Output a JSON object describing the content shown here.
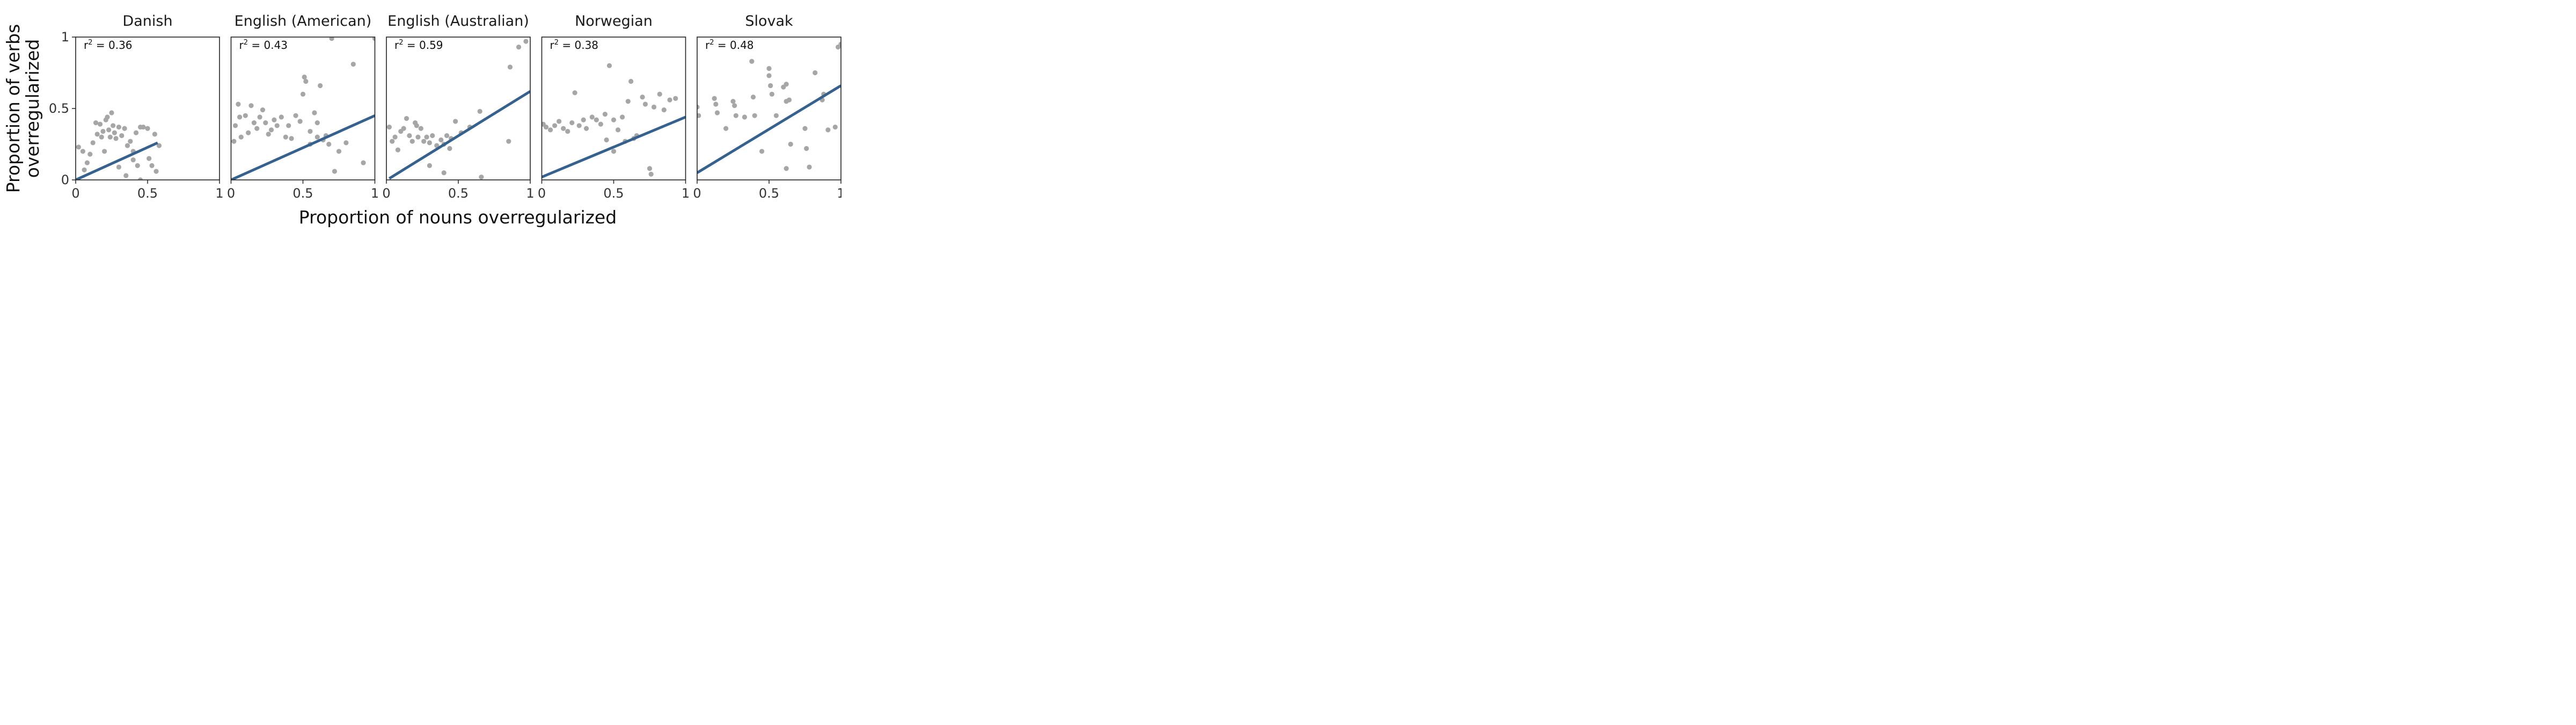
{
  "figure": {
    "y_axis_label_line1": "Proportion of verbs",
    "y_axis_label_line2": "overregularized",
    "x_axis_label": "Proportion of nouns overregularized"
  },
  "colors": {
    "points": "#a6a6a6",
    "fit_line": "#35618f",
    "frame": "#222222"
  },
  "chart_data": [
    {
      "type": "scatter",
      "title": "Danish",
      "r2_prefix": "r",
      "r2_exp": "2",
      "r2_value": " = 0.36",
      "xlim": [
        0,
        1
      ],
      "ylim": [
        0,
        1
      ],
      "x_ticks": [
        "0",
        "0.5",
        "1"
      ],
      "y_ticks": [
        "0",
        "0.5",
        "1"
      ],
      "fit_line": {
        "x": [
          0,
          0.57
        ],
        "y": [
          0.0,
          0.26
        ]
      },
      "points": [
        [
          0.02,
          0.23
        ],
        [
          0.05,
          0.2
        ],
        [
          0.1,
          0.18
        ],
        [
          0.12,
          0.26
        ],
        [
          0.14,
          0.4
        ],
        [
          0.15,
          0.32
        ],
        [
          0.17,
          0.39
        ],
        [
          0.18,
          0.3
        ],
        [
          0.19,
          0.34
        ],
        [
          0.2,
          0.2
        ],
        [
          0.21,
          0.42
        ],
        [
          0.22,
          0.44
        ],
        [
          0.23,
          0.35
        ],
        [
          0.24,
          0.3
        ],
        [
          0.25,
          0.47
        ],
        [
          0.26,
          0.38
        ],
        [
          0.27,
          0.33
        ],
        [
          0.28,
          0.29
        ],
        [
          0.3,
          0.37
        ],
        [
          0.32,
          0.31
        ],
        [
          0.34,
          0.36
        ],
        [
          0.36,
          0.24
        ],
        [
          0.38,
          0.27
        ],
        [
          0.4,
          0.2
        ],
        [
          0.42,
          0.33
        ],
        [
          0.43,
          0.1
        ],
        [
          0.45,
          0.37
        ],
        [
          0.47,
          0.37
        ],
        [
          0.5,
          0.36
        ],
        [
          0.51,
          0.15
        ],
        [
          0.53,
          0.1
        ],
        [
          0.55,
          0.32
        ],
        [
          0.56,
          0.06
        ],
        [
          0.58,
          0.24
        ],
        [
          0.35,
          0.03
        ],
        [
          0.4,
          0.14
        ],
        [
          0.45,
          0.0
        ],
        [
          0.3,
          0.09
        ],
        [
          0.06,
          0.07
        ],
        [
          0.08,
          0.12
        ]
      ]
    },
    {
      "type": "scatter",
      "title": "English (American)",
      "r2_prefix": "r",
      "r2_exp": "2",
      "r2_value": " = 0.43",
      "xlim": [
        0,
        1
      ],
      "ylim": [
        0,
        1
      ],
      "x_ticks": [
        "0",
        "0.5",
        "1"
      ],
      "y_ticks": [
        "0",
        "0.5",
        "1"
      ],
      "fit_line": {
        "x": [
          0,
          1
        ],
        "y": [
          0.0,
          0.45
        ]
      },
      "points": [
        [
          0.02,
          0.27
        ],
        [
          0.03,
          0.38
        ],
        [
          0.05,
          0.53
        ],
        [
          0.06,
          0.44
        ],
        [
          0.07,
          0.3
        ],
        [
          0.1,
          0.45
        ],
        [
          0.12,
          0.33
        ],
        [
          0.14,
          0.52
        ],
        [
          0.16,
          0.4
        ],
        [
          0.18,
          0.36
        ],
        [
          0.2,
          0.44
        ],
        [
          0.22,
          0.49
        ],
        [
          0.24,
          0.4
        ],
        [
          0.26,
          0.32
        ],
        [
          0.28,
          0.35
        ],
        [
          0.3,
          0.42
        ],
        [
          0.32,
          0.38
        ],
        [
          0.35,
          0.44
        ],
        [
          0.38,
          0.3
        ],
        [
          0.4,
          0.38
        ],
        [
          0.42,
          0.29
        ],
        [
          0.45,
          0.45
        ],
        [
          0.48,
          0.41
        ],
        [
          0.5,
          0.6
        ],
        [
          0.51,
          0.72
        ],
        [
          0.52,
          0.69
        ],
        [
          0.55,
          0.34
        ],
        [
          0.58,
          0.47
        ],
        [
          0.6,
          0.4
        ],
        [
          0.62,
          0.66
        ],
        [
          0.64,
          0.28
        ],
        [
          0.66,
          0.31
        ],
        [
          0.68,
          0.25
        ],
        [
          0.7,
          0.99
        ],
        [
          0.72,
          0.06
        ],
        [
          0.75,
          0.2
        ],
        [
          0.8,
          0.26
        ],
        [
          0.85,
          0.81
        ],
        [
          0.92,
          0.12
        ],
        [
          1.0,
          0.99
        ],
        [
          0.6,
          0.3
        ],
        [
          0.55,
          0.25
        ]
      ]
    },
    {
      "type": "scatter",
      "title": "English (Australian)",
      "r2_prefix": "r",
      "r2_exp": "2",
      "r2_value": " = 0.59",
      "xlim": [
        0,
        1
      ],
      "ylim": [
        0,
        1
      ],
      "x_ticks": [
        "0",
        "0.5",
        "1"
      ],
      "y_ticks": [
        "0",
        "0.5",
        "1"
      ],
      "fit_line": {
        "x": [
          0.02,
          1
        ],
        "y": [
          0.01,
          0.62
        ]
      },
      "points": [
        [
          0.02,
          0.37
        ],
        [
          0.04,
          0.27
        ],
        [
          0.06,
          0.3
        ],
        [
          0.08,
          0.21
        ],
        [
          0.1,
          0.34
        ],
        [
          0.12,
          0.36
        ],
        [
          0.14,
          0.43
        ],
        [
          0.16,
          0.31
        ],
        [
          0.18,
          0.27
        ],
        [
          0.2,
          0.4
        ],
        [
          0.21,
          0.38
        ],
        [
          0.22,
          0.3
        ],
        [
          0.24,
          0.36
        ],
        [
          0.26,
          0.27
        ],
        [
          0.28,
          0.3
        ],
        [
          0.3,
          0.26
        ],
        [
          0.32,
          0.31
        ],
        [
          0.35,
          0.24
        ],
        [
          0.38,
          0.28
        ],
        [
          0.4,
          0.25
        ],
        [
          0.42,
          0.31
        ],
        [
          0.44,
          0.22
        ],
        [
          0.45,
          0.29
        ],
        [
          0.48,
          0.41
        ],
        [
          0.52,
          0.33
        ],
        [
          0.58,
          0.37
        ],
        [
          0.65,
          0.48
        ],
        [
          0.66,
          0.02
        ],
        [
          0.85,
          0.27
        ],
        [
          0.86,
          0.79
        ],
        [
          0.92,
          0.93
        ],
        [
          0.97,
          0.97
        ],
        [
          0.3,
          0.1
        ],
        [
          0.4,
          0.05
        ]
      ]
    },
    {
      "type": "scatter",
      "title": "Norwegian",
      "r2_prefix": "r",
      "r2_exp": "2",
      "r2_value": " = 0.38",
      "xlim": [
        0,
        1
      ],
      "ylim": [
        0,
        1
      ],
      "x_ticks": [
        "0",
        "0.5",
        "1"
      ],
      "y_ticks": [
        "0",
        "0.5",
        "1"
      ],
      "fit_line": {
        "x": [
          0,
          1
        ],
        "y": [
          0.02,
          0.44
        ]
      },
      "points": [
        [
          0.01,
          0.39
        ],
        [
          0.03,
          0.37
        ],
        [
          0.06,
          0.35
        ],
        [
          0.09,
          0.38
        ],
        [
          0.12,
          0.41
        ],
        [
          0.15,
          0.36
        ],
        [
          0.18,
          0.34
        ],
        [
          0.21,
          0.4
        ],
        [
          0.23,
          0.61
        ],
        [
          0.26,
          0.38
        ],
        [
          0.29,
          0.42
        ],
        [
          0.31,
          0.36
        ],
        [
          0.35,
          0.44
        ],
        [
          0.38,
          0.42
        ],
        [
          0.41,
          0.39
        ],
        [
          0.44,
          0.46
        ],
        [
          0.47,
          0.8
        ],
        [
          0.5,
          0.42
        ],
        [
          0.53,
          0.35
        ],
        [
          0.56,
          0.44
        ],
        [
          0.58,
          0.27
        ],
        [
          0.6,
          0.55
        ],
        [
          0.62,
          0.69
        ],
        [
          0.64,
          0.29
        ],
        [
          0.66,
          0.31
        ],
        [
          0.7,
          0.58
        ],
        [
          0.72,
          0.53
        ],
        [
          0.75,
          0.08
        ],
        [
          0.76,
          0.04
        ],
        [
          0.78,
          0.51
        ],
        [
          0.82,
          0.6
        ],
        [
          0.85,
          0.49
        ],
        [
          0.89,
          0.56
        ],
        [
          0.93,
          0.57
        ],
        [
          0.45,
          0.28
        ],
        [
          0.5,
          0.2
        ]
      ]
    },
    {
      "type": "scatter",
      "title": "Slovak",
      "r2_prefix": "r",
      "r2_exp": "2",
      "r2_value": " = 0.48",
      "xlim": [
        0,
        1
      ],
      "ylim": [
        0,
        1
      ],
      "x_ticks": [
        "0",
        "0.5",
        "1"
      ],
      "y_ticks": [
        "0",
        "0.5",
        "1"
      ],
      "fit_line": {
        "x": [
          0,
          1
        ],
        "y": [
          0.05,
          0.66
        ]
      },
      "points": [
        [
          0.0,
          0.51
        ],
        [
          0.01,
          0.45
        ],
        [
          0.12,
          0.57
        ],
        [
          0.13,
          0.53
        ],
        [
          0.14,
          0.47
        ],
        [
          0.25,
          0.55
        ],
        [
          0.26,
          0.52
        ],
        [
          0.27,
          0.45
        ],
        [
          0.38,
          0.83
        ],
        [
          0.39,
          0.58
        ],
        [
          0.4,
          0.45
        ],
        [
          0.5,
          0.78
        ],
        [
          0.5,
          0.73
        ],
        [
          0.51,
          0.66
        ],
        [
          0.52,
          0.6
        ],
        [
          0.6,
          0.65
        ],
        [
          0.62,
          0.67
        ],
        [
          0.62,
          0.55
        ],
        [
          0.64,
          0.56
        ],
        [
          0.65,
          0.25
        ],
        [
          0.75,
          0.36
        ],
        [
          0.76,
          0.22
        ],
        [
          0.78,
          0.09
        ],
        [
          0.82,
          0.75
        ],
        [
          0.87,
          0.56
        ],
        [
          0.88,
          0.6
        ],
        [
          0.91,
          0.35
        ],
        [
          0.96,
          0.37
        ],
        [
          0.98,
          0.93
        ],
        [
          1.0,
          0.95
        ],
        [
          0.2,
          0.36
        ],
        [
          0.33,
          0.44
        ],
        [
          0.45,
          0.2
        ],
        [
          0.62,
          0.08
        ],
        [
          0.55,
          0.45
        ]
      ]
    }
  ]
}
